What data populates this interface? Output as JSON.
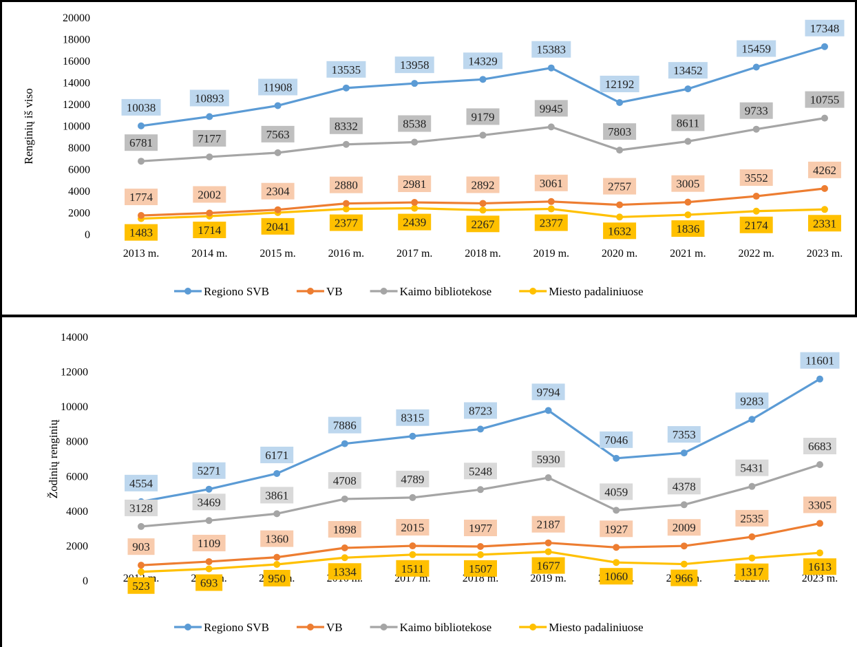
{
  "chart_data": [
    {
      "type": "line",
      "ylabel": "Renginių iš viso",
      "xlabel": "",
      "ylim": [
        0,
        20000
      ],
      "ytick_step": 2000,
      "categories": [
        "2013 m.",
        "2014 m.",
        "2015 m.",
        "2016 m.",
        "2017 m.",
        "2018 m.",
        "2019 m.",
        "2020 m.",
        "2021 m.",
        "2022 m.",
        "2023 m."
      ],
      "grid": false,
      "legend": "bottom",
      "series": [
        {
          "name": "Regiono SVB",
          "color": "#5b9bd5",
          "label_bg": "#bdd7ee",
          "label_pos": "above",
          "values": [
            10038,
            10893,
            11908,
            13535,
            13958,
            14329,
            15383,
            12192,
            13452,
            15459,
            17348
          ]
        },
        {
          "name": "VB",
          "color": "#ed7d31",
          "label_bg": "#f8cbad",
          "label_pos": "above",
          "values": [
            1774,
            2002,
            2304,
            2880,
            2981,
            2892,
            3061,
            2757,
            3005,
            3552,
            4262
          ]
        },
        {
          "name": "Kaimo bibliotekose",
          "color": "#a5a5a5",
          "label_bg": "#bfbfbf",
          "label_pos": "above",
          "values": [
            6781,
            7177,
            7563,
            8332,
            8538,
            9179,
            9945,
            7803,
            8611,
            9733,
            10755
          ]
        },
        {
          "name": "Miesto padaliniuose",
          "color": "#ffc000",
          "label_bg": "#ffc000",
          "label_pos": "below",
          "values": [
            1483,
            1714,
            2041,
            2377,
            2439,
            2267,
            2377,
            1632,
            1836,
            2174,
            2331
          ]
        }
      ]
    },
    {
      "type": "line",
      "ylabel": "Žodinių renginių",
      "xlabel": "",
      "ylim": [
        0,
        14000
      ],
      "ytick_step": 2000,
      "categories": [
        "2013 m.",
        "2014 m.",
        "2015 m.",
        "2016 m.",
        "2017 m.",
        "2018 m.",
        "2019 m.",
        "2020 m.",
        "2021 m.",
        "2022 m.",
        "2023 m."
      ],
      "grid": false,
      "legend": "bottom",
      "series": [
        {
          "name": "Regiono SVB",
          "color": "#5b9bd5",
          "label_bg": "#bdd7ee",
          "label_pos": "above",
          "values": [
            4554,
            5271,
            6171,
            7886,
            8315,
            8723,
            9794,
            7046,
            7353,
            9283,
            11601
          ]
        },
        {
          "name": "VB",
          "color": "#ed7d31",
          "label_bg": "#f8cbad",
          "label_pos": "above",
          "values": [
            903,
            1109,
            1360,
            1898,
            2015,
            1977,
            2187,
            1927,
            2009,
            2535,
            3305
          ]
        },
        {
          "name": "Kaimo bibliotekose",
          "color": "#a5a5a5",
          "label_bg": "#d9d9d9",
          "label_pos": "above",
          "values": [
            3128,
            3469,
            3861,
            4708,
            4789,
            5248,
            5930,
            4059,
            4378,
            5431,
            6683
          ]
        },
        {
          "name": "Miesto padaliniuose",
          "color": "#ffc000",
          "label_bg": "#ffc000",
          "label_pos": "below",
          "values": [
            523,
            693,
            950,
            1334,
            1511,
            1507,
            1677,
            1060,
            966,
            1317,
            1613
          ]
        }
      ]
    }
  ]
}
